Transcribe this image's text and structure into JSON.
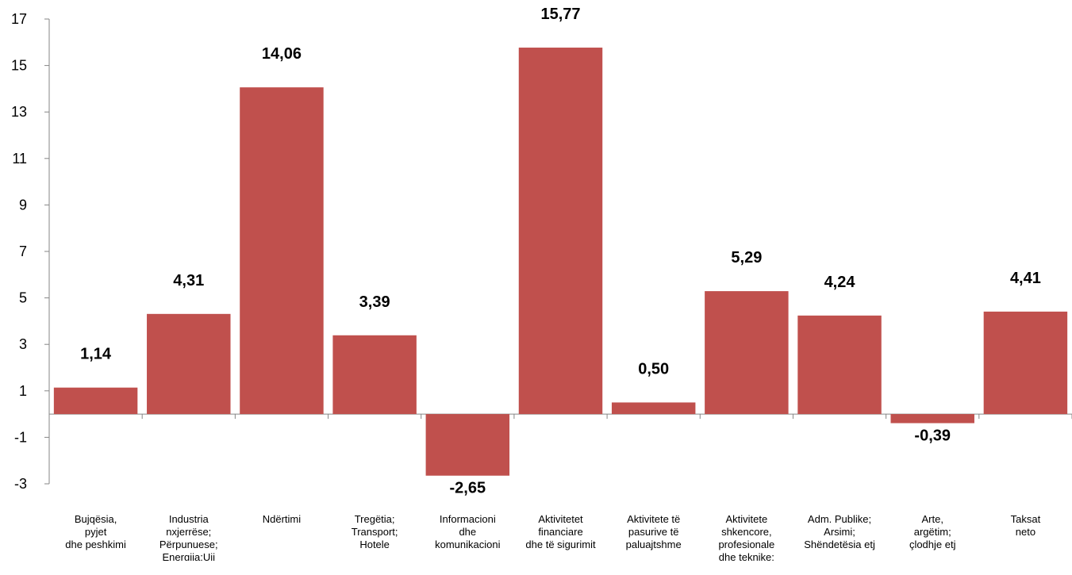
{
  "chart_data": {
    "type": "bar",
    "categories": [
      "Bujqësia,\npyjet\ndhe peshkimi",
      "Industria\nnxjerrëse;\nPërpunuese;\nEnergjia;Uji",
      "Ndërtimi",
      "Tregëtia;\nTransport;\nHotele",
      "Informacioni\ndhe\nkomunikacioni",
      "Aktivitetet\nfinanciare\ndhe të sigurimit",
      "Aktivitete të\npasurive të\npaluajtshme",
      "Aktivitete\nshkencore,\nprofesionale\ndhe teknike;",
      "Adm. Publike;\nArsimi;\nShëndetësia etj",
      "Arte,\nargëtim;\nçlodhje etj",
      "Taksat\nneto"
    ],
    "values": [
      1.14,
      4.31,
      14.06,
      3.39,
      -2.65,
      15.77,
      0.5,
      5.29,
      4.24,
      -0.39,
      4.41
    ],
    "value_labels": [
      "1,14",
      "4,31",
      "14,06",
      "3,39",
      "-2,65",
      "15,77",
      "0,50",
      "5,29",
      "4,24",
      "-0,39",
      "4,41"
    ],
    "yticks": [
      "17",
      "15",
      "13",
      "11",
      "9",
      "7",
      "5",
      "3",
      "1",
      "-1",
      "-3"
    ],
    "ytick_values": [
      17,
      15,
      13,
      11,
      9,
      7,
      5,
      3,
      1,
      -1,
      -3
    ],
    "ylim": [
      -3,
      17
    ],
    "title": "",
    "xlabel": "",
    "ylabel": "",
    "grid": false,
    "bar_color": "#C0504D"
  }
}
